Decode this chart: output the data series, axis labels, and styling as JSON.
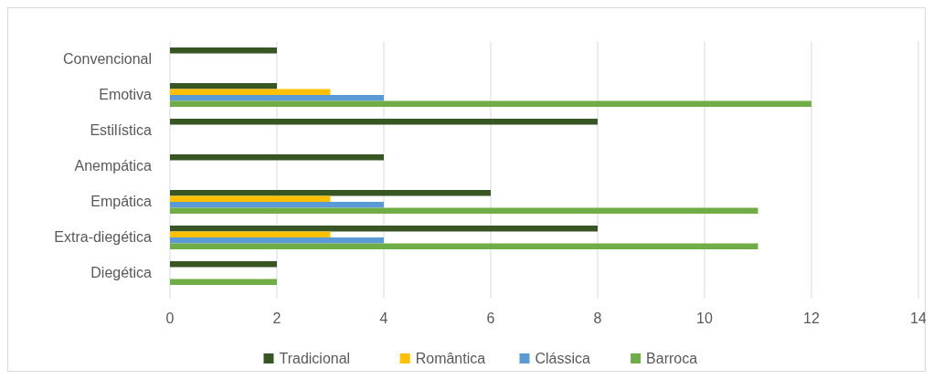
{
  "chart_data": {
    "type": "bar",
    "orientation": "horizontal",
    "categories": [
      "Convencional",
      "Emotiva",
      "Estilística",
      "Anempática",
      "Empática",
      "Extra-diegética",
      "Diegética"
    ],
    "series": [
      {
        "name": "Tradicional",
        "color": "#375623",
        "values": [
          2,
          2,
          8,
          4,
          6,
          8,
          2
        ]
      },
      {
        "name": "Romântica",
        "color": "#ffc000",
        "values": [
          null,
          3,
          null,
          null,
          3,
          3,
          null
        ]
      },
      {
        "name": "Clássica",
        "color": "#5b9bd5",
        "values": [
          null,
          4,
          null,
          null,
          4,
          4,
          null
        ]
      },
      {
        "name": "Barroca",
        "color": "#70ad47",
        "values": [
          null,
          12,
          null,
          null,
          11,
          11,
          2
        ]
      }
    ],
    "xlim": [
      0,
      14
    ],
    "xticks": [
      0,
      2,
      4,
      6,
      8,
      10,
      12,
      14
    ],
    "grid": "x",
    "legend": "bottom"
  }
}
